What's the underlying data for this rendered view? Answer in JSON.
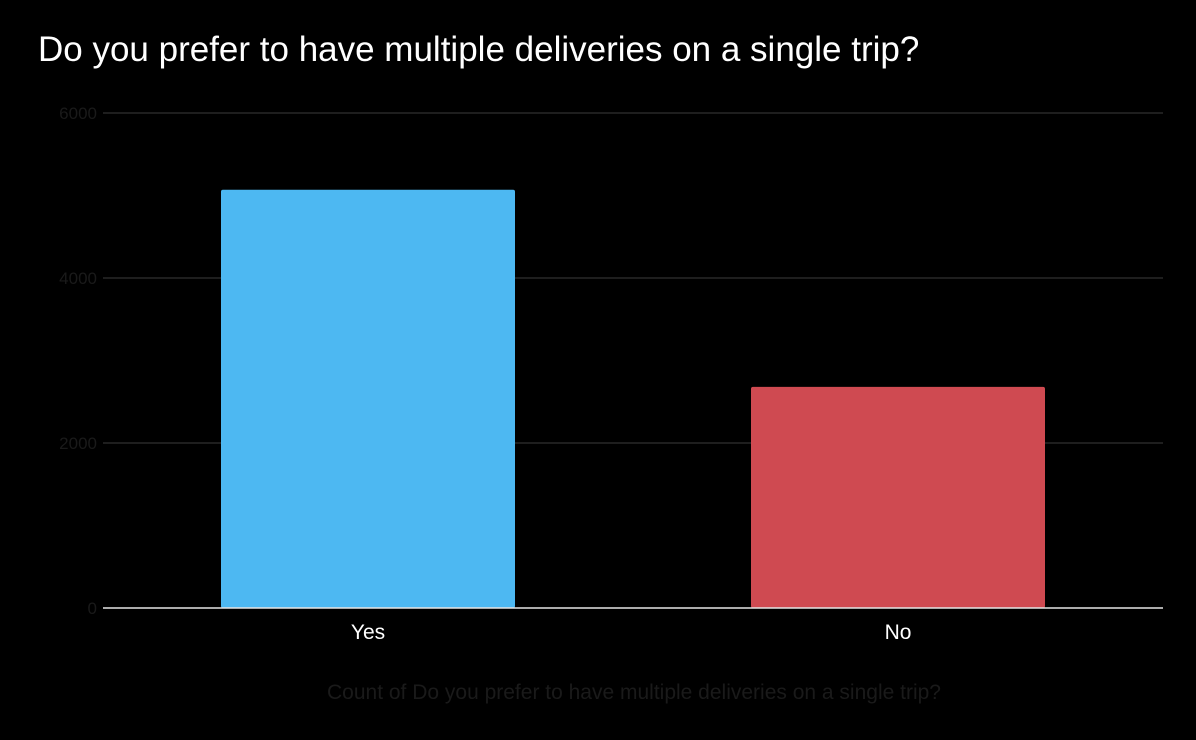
{
  "chart_data": {
    "type": "bar",
    "title": "Do you prefer to have multiple deliveries on a single trip?",
    "categories": [
      "Yes",
      "No"
    ],
    "values": [
      5070,
      2680
    ],
    "bar_colors": [
      "#4db8f2",
      "#cf4a51"
    ],
    "xlabel": "Count of Do you prefer to have multiple deliveries on a single trip?",
    "ylabel": "",
    "ylim": [
      0,
      6000
    ],
    "yticks": [
      0,
      2000,
      4000,
      6000
    ],
    "ytick_labels": [
      "0",
      "2000",
      "4000",
      "6000"
    ],
    "grid": true,
    "legend": "none"
  },
  "colors": {
    "background": "#000000",
    "text": "#ffffff",
    "gridline": "#3c3c3c",
    "axis": "#e6e6e6",
    "faint_text": "#1a1a1a"
  }
}
